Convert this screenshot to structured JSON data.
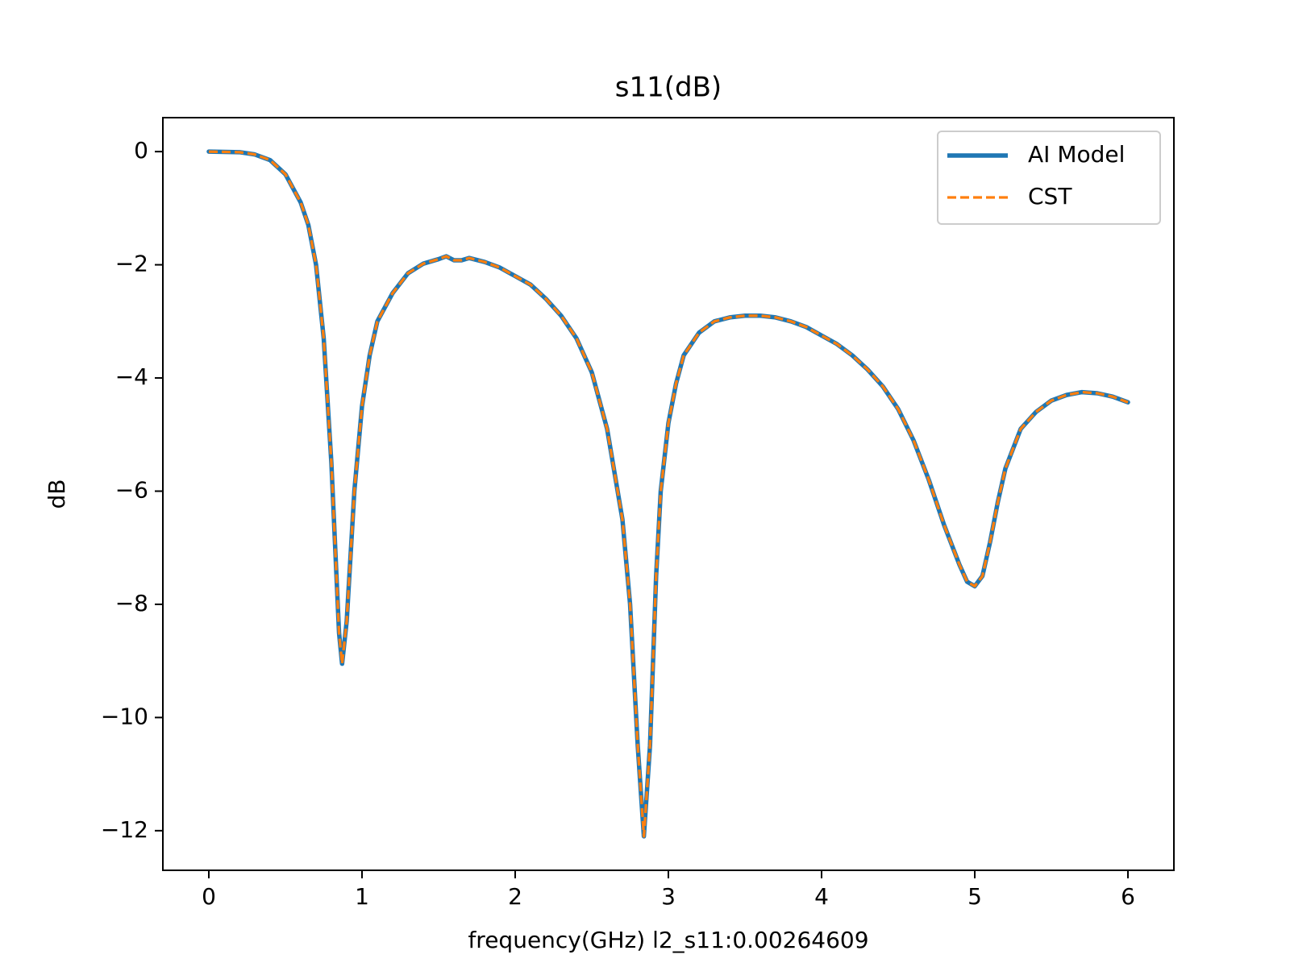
{
  "chart_data": {
    "type": "line",
    "title": "s11(dB)",
    "x_label": "frequency(GHz) l2_s11:0.00264609",
    "y_label": "dB",
    "x": [
      0,
      0.2,
      0.3,
      0.4,
      0.5,
      0.6,
      0.65,
      0.7,
      0.75,
      0.8,
      0.85,
      0.87,
      0.9,
      0.95,
      1.0,
      1.05,
      1.1,
      1.2,
      1.3,
      1.4,
      1.5,
      1.55,
      1.6,
      1.65,
      1.7,
      1.8,
      1.9,
      2.0,
      2.1,
      2.2,
      2.3,
      2.4,
      2.5,
      2.6,
      2.7,
      2.75,
      2.8,
      2.84,
      2.88,
      2.92,
      2.95,
      3.0,
      3.05,
      3.1,
      3.2,
      3.3,
      3.4,
      3.5,
      3.6,
      3.7,
      3.8,
      3.9,
      4.0,
      4.1,
      4.2,
      4.3,
      4.4,
      4.5,
      4.6,
      4.7,
      4.8,
      4.9,
      4.95,
      5.0,
      5.05,
      5.1,
      5.15,
      5.2,
      5.3,
      5.4,
      5.5,
      5.6,
      5.7,
      5.8,
      5.9,
      6.0
    ],
    "series": [
      {
        "name": "AI Model",
        "color": "#1f77b4",
        "style": "solid",
        "values": [
          0,
          -0.01,
          -0.05,
          -0.15,
          -0.4,
          -0.9,
          -1.3,
          -2.0,
          -3.3,
          -5.5,
          -8.5,
          -9.05,
          -8.3,
          -6.0,
          -4.5,
          -3.6,
          -3.0,
          -2.5,
          -2.15,
          -1.98,
          -1.9,
          -1.85,
          -1.92,
          -1.92,
          -1.88,
          -1.95,
          -2.05,
          -2.2,
          -2.35,
          -2.6,
          -2.9,
          -3.3,
          -3.9,
          -4.9,
          -6.5,
          -8.0,
          -10.5,
          -12.1,
          -10.5,
          -7.5,
          -6.0,
          -4.8,
          -4.1,
          -3.6,
          -3.2,
          -3.0,
          -2.93,
          -2.9,
          -2.9,
          -2.93,
          -3.0,
          -3.1,
          -3.25,
          -3.4,
          -3.6,
          -3.85,
          -4.15,
          -4.55,
          -5.1,
          -5.8,
          -6.6,
          -7.3,
          -7.6,
          -7.68,
          -7.5,
          -6.9,
          -6.2,
          -5.6,
          -4.9,
          -4.6,
          -4.4,
          -4.3,
          -4.25,
          -4.27,
          -4.33,
          -4.43
        ]
      },
      {
        "name": "CST",
        "color": "#ff7f0e",
        "style": "dashed",
        "values": [
          0,
          -0.01,
          -0.05,
          -0.15,
          -0.4,
          -0.9,
          -1.3,
          -2.0,
          -3.3,
          -5.5,
          -8.5,
          -9.05,
          -8.3,
          -6.0,
          -4.5,
          -3.6,
          -3.0,
          -2.5,
          -2.15,
          -1.98,
          -1.9,
          -1.85,
          -1.92,
          -1.92,
          -1.88,
          -1.95,
          -2.05,
          -2.2,
          -2.35,
          -2.6,
          -2.9,
          -3.3,
          -3.9,
          -4.9,
          -6.5,
          -8.0,
          -10.5,
          -12.1,
          -10.5,
          -7.5,
          -6.0,
          -4.8,
          -4.1,
          -3.6,
          -3.2,
          -3.0,
          -2.93,
          -2.9,
          -2.9,
          -2.93,
          -3.0,
          -3.1,
          -3.25,
          -3.4,
          -3.6,
          -3.85,
          -4.15,
          -4.55,
          -5.1,
          -5.8,
          -6.6,
          -7.3,
          -7.6,
          -7.68,
          -7.5,
          -6.9,
          -6.2,
          -5.6,
          -4.9,
          -4.6,
          -4.4,
          -4.3,
          -4.25,
          -4.27,
          -4.33,
          -4.43
        ]
      }
    ],
    "xlim": [
      -0.3,
      6.3
    ],
    "xticks": [
      0,
      1,
      2,
      3,
      4,
      5,
      6
    ],
    "ylim": [
      -12.7,
      0.6
    ],
    "yticks": [
      {
        "value": -12,
        "label": "−12"
      },
      {
        "value": -10,
        "label": "−10"
      },
      {
        "value": -8,
        "label": "−8"
      },
      {
        "value": -6,
        "label": "−6"
      },
      {
        "value": -4,
        "label": "−4"
      },
      {
        "value": -2,
        "label": "−2"
      },
      0
    ],
    "legend": "upper right",
    "grid": false
  }
}
